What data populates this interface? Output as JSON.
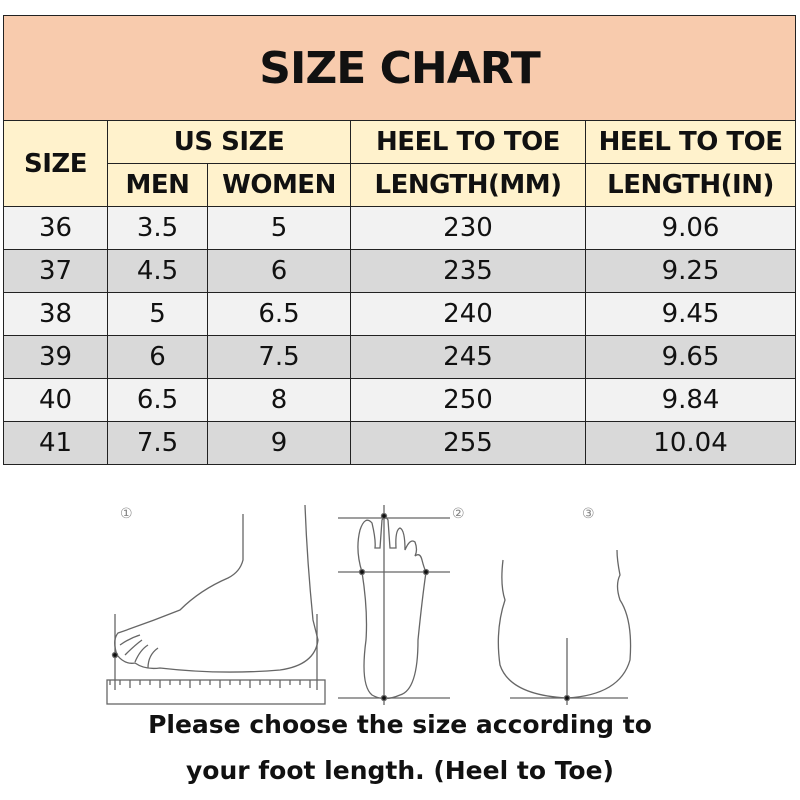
{
  "title": "SIZE CHART",
  "headers": {
    "size": "SIZE",
    "us_size": "US SIZE",
    "men": "MEN",
    "women": "WOMEN",
    "mm_top": "HEEL TO TOE",
    "mm_bottom": "LENGTH(MM)",
    "in_top": "HEEL TO TOE",
    "in_bottom": "LENGTH(IN)"
  },
  "rows": [
    [
      "36",
      "3.5",
      "5",
      "230",
      "9.06"
    ],
    [
      "37",
      "4.5",
      "6",
      "235",
      "9.25"
    ],
    [
      "38",
      "5",
      "6.5",
      "240",
      "9.45"
    ],
    [
      "39",
      "6",
      "7.5",
      "245",
      "9.65"
    ],
    [
      "40",
      "6.5",
      "8",
      "250",
      "9.84"
    ],
    [
      "41",
      "7.5",
      "9",
      "255",
      "10.04"
    ]
  ],
  "steps": [
    "①",
    "②",
    "③"
  ],
  "note_line1": "Please choose the size according to",
  "note_line2": "your foot length. (Heel to Toe)",
  "colors": {
    "title_bg": "#f8cbad",
    "header_bg": "#fff2cc",
    "row_light": "#f2f2f2",
    "row_dark": "#d9d9d9"
  }
}
